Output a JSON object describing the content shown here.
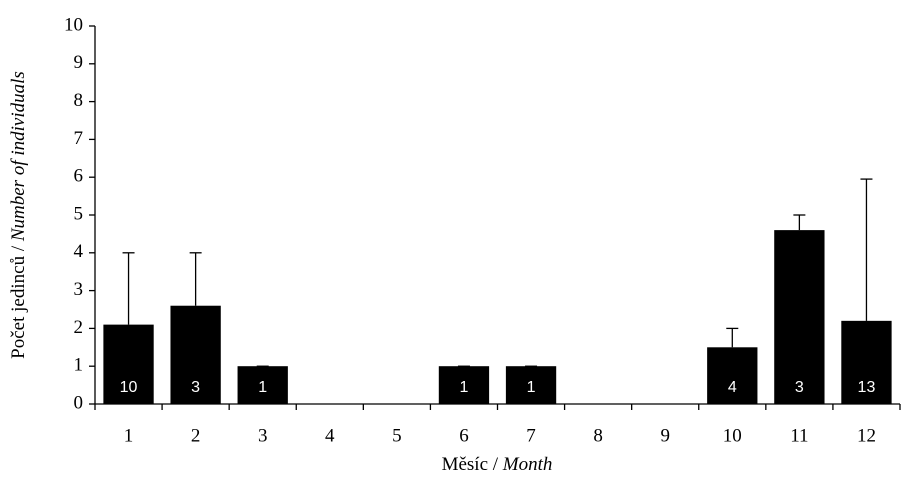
{
  "chart_data": {
    "type": "bar",
    "ylabel": [
      "Počet jedinců /",
      "Number of individuals"
    ],
    "xlabel": [
      "Měsíc /",
      "Month"
    ],
    "categories": [
      "1",
      "2",
      "3",
      "4",
      "5",
      "6",
      "7",
      "8",
      "9",
      "10",
      "11",
      "12"
    ],
    "values": [
      2.1,
      2.6,
      1.0,
      null,
      null,
      1.0,
      1.0,
      null,
      null,
      1.5,
      4.6,
      2.2
    ],
    "errors": [
      1.9,
      1.4,
      0,
      null,
      null,
      0,
      0,
      null,
      null,
      0.5,
      0.4,
      3.75
    ],
    "sample_sizes": [
      10,
      3,
      1,
      null,
      null,
      1,
      1,
      null,
      null,
      4,
      3,
      13
    ],
    "color": "#000000",
    "ylim": [
      0,
      10
    ],
    "yticks": [
      0,
      1,
      2,
      3,
      4,
      5,
      6,
      7,
      8,
      9,
      10
    ]
  }
}
